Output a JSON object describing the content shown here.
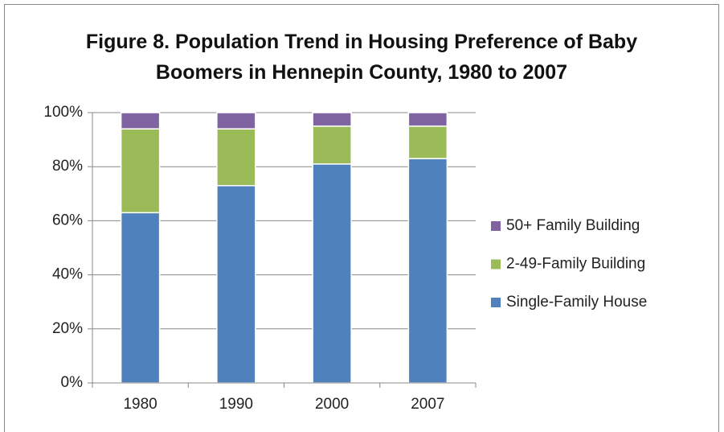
{
  "chart_data": {
    "type": "stacked_bar",
    "title": "Figure 8. Population Trend in Housing Preference of Baby Boomers in Hennepin County, 1980 to 2007",
    "categories": [
      "1980",
      "1990",
      "2000",
      "2007"
    ],
    "series": [
      {
        "name": "Single-Family House",
        "color": "#4f81bd",
        "values": [
          63,
          73,
          81,
          83
        ]
      },
      {
        "name": "2-49-Family Building",
        "color": "#9bbb59",
        "values": [
          31,
          21,
          14,
          12
        ]
      },
      {
        "name": "50+ Family Building",
        "color": "#8064a2",
        "values": [
          6,
          6,
          5,
          5
        ]
      }
    ],
    "ylim": [
      0,
      100
    ],
    "yticks": [
      {
        "value": 0,
        "label": "0%"
      },
      {
        "value": 20,
        "label": "20%"
      },
      {
        "value": 40,
        "label": "40%"
      },
      {
        "value": 60,
        "label": "60%"
      },
      {
        "value": 80,
        "label": "80%"
      },
      {
        "value": 100,
        "label": "100%"
      }
    ],
    "grid": true,
    "legend": "right"
  }
}
